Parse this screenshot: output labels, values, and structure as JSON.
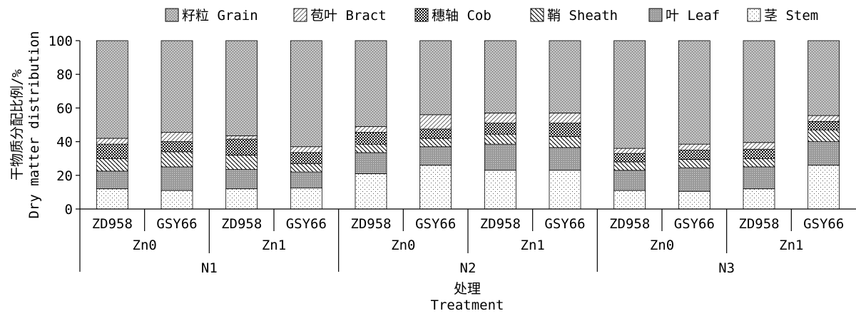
{
  "chart_data": {
    "type": "bar",
    "stacked": true,
    "ylabel_lines": [
      "干物质分配比例/%",
      "Dry matter distribution"
    ],
    "xlabel_lines": [
      "处理",
      "Treatment"
    ],
    "ylim": [
      0,
      100
    ],
    "yticks": [
      "0",
      "20",
      "40",
      "60",
      "80",
      "100"
    ],
    "legend_position": "top",
    "categories": [
      {
        "label": "ZD958",
        "zn": "Zn0",
        "n": "N1"
      },
      {
        "label": "GSY66",
        "zn": "Zn0",
        "n": "N1"
      },
      {
        "label": "ZD958",
        "zn": "Zn1",
        "n": "N1"
      },
      {
        "label": "GSY66",
        "zn": "Zn1",
        "n": "N1"
      },
      {
        "label": "ZD958",
        "zn": "Zn0",
        "n": "N2"
      },
      {
        "label": "GSY66",
        "zn": "Zn0",
        "n": "N2"
      },
      {
        "label": "ZD958",
        "zn": "Zn1",
        "n": "N2"
      },
      {
        "label": "GSY66",
        "zn": "Zn1",
        "n": "N2"
      },
      {
        "label": "ZD958",
        "zn": "Zn0",
        "n": "N3"
      },
      {
        "label": "GSY66",
        "zn": "Zn0",
        "n": "N3"
      },
      {
        "label": "ZD958",
        "zn": "Zn1",
        "n": "N3"
      },
      {
        "label": "GSY66",
        "zn": "Zn1",
        "n": "N3"
      }
    ],
    "zn_groups": [
      "Zn0",
      "Zn1",
      "Zn0",
      "Zn1",
      "Zn0",
      "Zn1"
    ],
    "n_groups": [
      "N1",
      "N2",
      "N3"
    ],
    "series": [
      {
        "name": "茎 Stem",
        "key": "stem",
        "values": [
          12,
          11,
          12,
          12.5,
          21,
          26,
          23,
          23,
          11,
          10.5,
          12,
          26
        ]
      },
      {
        "name": "叶 Leaf",
        "key": "leaf",
        "values": [
          10.5,
          14,
          11.5,
          9.5,
          12.5,
          11,
          15.5,
          13.5,
          12,
          14,
          13,
          14
        ]
      },
      {
        "name": "鞘 Sheath",
        "key": "sheath",
        "values": [
          7.5,
          9,
          8.5,
          5,
          5,
          5,
          6,
          6.5,
          5,
          5,
          5,
          7
        ]
      },
      {
        "name": "穗轴 Cob",
        "key": "cob",
        "values": [
          8.5,
          6,
          9.5,
          6.5,
          7,
          5.5,
          6.5,
          8,
          5,
          5.5,
          5.5,
          5
        ]
      },
      {
        "name": "苞叶 Bract",
        "key": "bract",
        "values": [
          3.5,
          5.5,
          2,
          3.5,
          3.5,
          8.5,
          6,
          6,
          3,
          3.5,
          4,
          3.5
        ]
      },
      {
        "name": "籽粒 Grain",
        "key": "grain",
        "values": [
          58,
          54.5,
          56.5,
          63,
          51,
          44,
          43,
          43,
          64,
          61.5,
          60.5,
          44.5
        ]
      }
    ],
    "legend_order": [
      "grain",
      "bract",
      "cob",
      "sheath",
      "leaf",
      "stem"
    ]
  }
}
